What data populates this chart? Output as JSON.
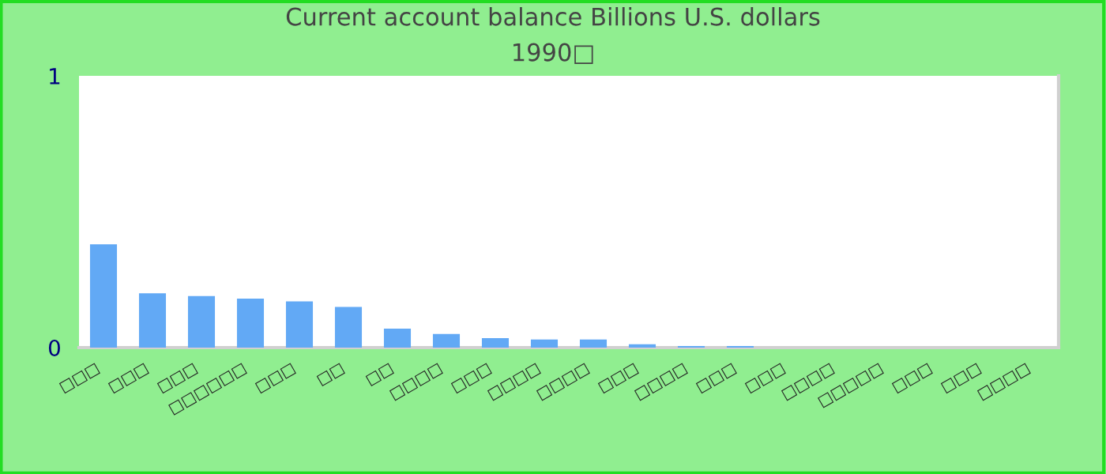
{
  "chart_data": {
    "type": "bar",
    "title": "Current account balance Billions U.S. dollars",
    "subtitle": "1990□",
    "categories": [
      "□□□",
      "□□□",
      "□□□",
      "□□□□□□",
      "□□□",
      "□□",
      "□□",
      "□□□□",
      "□□□",
      "□□□□",
      "□□□□",
      "□□□",
      "□□□□",
      "□□□",
      "□□□",
      "□□□□",
      "□□□□□",
      "□□□",
      "□□□",
      "□□□□"
    ],
    "values": [
      0.38,
      0.2,
      0.19,
      0.18,
      0.17,
      0.15,
      0.07,
      0.05,
      0.035,
      0.03,
      0.03,
      0.012,
      0.006,
      0.006,
      0,
      0,
      0,
      0,
      0,
      0
    ],
    "color": "#62a9f5",
    "ylim": [
      0,
      1
    ],
    "yticks": [
      0,
      1
    ],
    "grid": false,
    "legend": false
  }
}
